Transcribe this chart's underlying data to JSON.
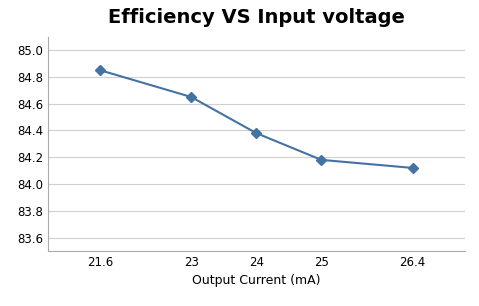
{
  "title": "Efficiency VS Input voltage",
  "xlabel": "Output Current (mA)",
  "x": [
    21.6,
    23,
    24,
    25,
    26.4
  ],
  "y": [
    84.85,
    84.65,
    84.38,
    84.18,
    84.12
  ],
  "xticks": [
    21.6,
    23,
    24,
    25,
    26.4
  ],
  "yticks": [
    83.6,
    83.8,
    84.0,
    84.2,
    84.4,
    84.6,
    84.8,
    85.0
  ],
  "ylim": [
    83.5,
    85.1
  ],
  "xlim": [
    20.8,
    27.2
  ],
  "line_color": "#4472a4",
  "marker": "D",
  "marker_color": "#4472a4",
  "marker_size": 5,
  "background_color": "#ffffff",
  "plot_bg_color": "#ffffff",
  "grid_color": "#d0d0d0",
  "title_fontsize": 14,
  "label_fontsize": 9,
  "tick_fontsize": 8.5
}
